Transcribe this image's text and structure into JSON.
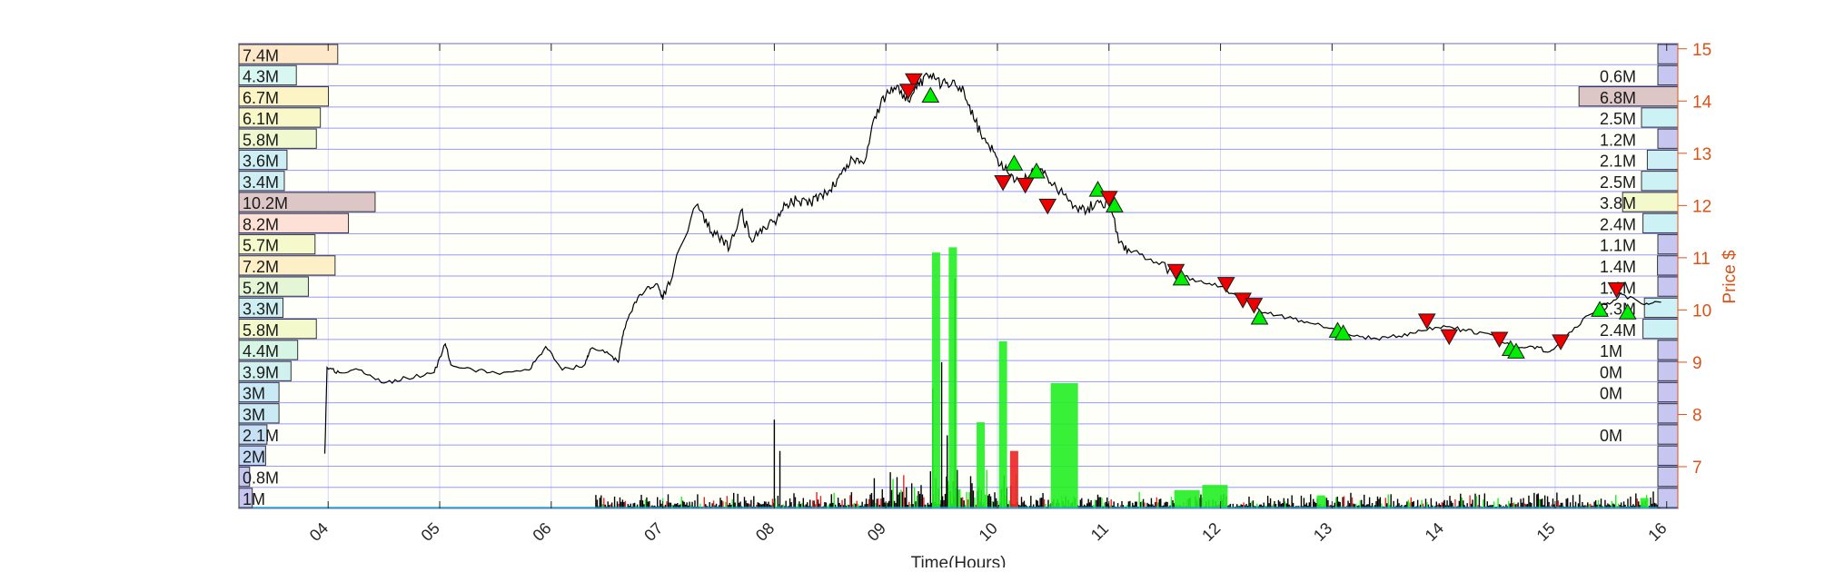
{
  "chart_data": {
    "type": "line",
    "xlabel": "Time(Hours)",
    "ylabel": "Price $",
    "xlim": [
      3.2,
      16.1
    ],
    "ylim": [
      6.2,
      15.1
    ],
    "x_ticks": [
      "04",
      "05",
      "06",
      "07",
      "08",
      "09",
      "10",
      "11",
      "12",
      "13",
      "14",
      "15",
      "16"
    ],
    "y_ticks": [
      "7",
      "8",
      "9",
      "10",
      "11",
      "12",
      "13",
      "14",
      "15"
    ],
    "grid": true,
    "colors": {
      "price_line": "#000000",
      "axis_right": "#d95319",
      "grid": "#8080ff",
      "buy": "#00ee00",
      "sell": "#ee0000",
      "volume_up": "#22ee22",
      "volume_down": "#ee2222",
      "volume_neutral": "#000000"
    },
    "left_volume_profile": [
      {
        "label": "7.4M",
        "value": 7.4,
        "color": "#fde9c9"
      },
      {
        "label": "4.3M",
        "value": 4.3,
        "color": "#d9f7f1"
      },
      {
        "label": "6.7M",
        "value": 6.7,
        "color": "#fdf4c6"
      },
      {
        "label": "6.1M",
        "value": 6.1,
        "color": "#f8f8c8"
      },
      {
        "label": "5.8M",
        "value": 5.8,
        "color": "#f0f8d0"
      },
      {
        "label": "3.6M",
        "value": 3.6,
        "color": "#cdeff3"
      },
      {
        "label": "3.4M",
        "value": 3.4,
        "color": "#cdeff3"
      },
      {
        "label": "10.2M",
        "value": 10.2,
        "color": "#dcc6c6"
      },
      {
        "label": "8.2M",
        "value": 8.2,
        "color": "#fde0d6"
      },
      {
        "label": "5.7M",
        "value": 5.7,
        "color": "#f6f9cc"
      },
      {
        "label": "7.2M",
        "value": 7.2,
        "color": "#fdf0c8"
      },
      {
        "label": "5.2M",
        "value": 5.2,
        "color": "#e4f6d6"
      },
      {
        "label": "3.3M",
        "value": 3.3,
        "color": "#cdeff3"
      },
      {
        "label": "5.8M",
        "value": 5.8,
        "color": "#f4f9cc"
      },
      {
        "label": "4.4M",
        "value": 4.4,
        "color": "#d7f5e4"
      },
      {
        "label": "3.9M",
        "value": 3.9,
        "color": "#d0f1ef"
      },
      {
        "label": "3M",
        "value": 3.0,
        "color": "#c9eaf5"
      },
      {
        "label": "3M",
        "value": 3.0,
        "color": "#c9eaf5"
      },
      {
        "label": "2.1M",
        "value": 2.1,
        "color": "#c6e1f5"
      },
      {
        "label": "2M",
        "value": 2.0,
        "color": "#c3d9f5"
      },
      {
        "label": "0.8M",
        "value": 0.8,
        "color": "#c6c6f0"
      },
      {
        "label": "1M",
        "value": 1.0,
        "color": "#c6c6f0"
      }
    ],
    "right_volume_profile": [
      {
        "label": "",
        "value": 0.0,
        "color": "#c6c6f0"
      },
      {
        "label": "0.6M",
        "value": 0.6,
        "color": "#c6c6f0"
      },
      {
        "label": "6.8M",
        "value": 6.8,
        "color": "#dcc6c6"
      },
      {
        "label": "2.5M",
        "value": 2.5,
        "color": "#cdf2f5"
      },
      {
        "label": "1.2M",
        "value": 1.2,
        "color": "#c6c6f0"
      },
      {
        "label": "2.1M",
        "value": 2.1,
        "color": "#cdeff5"
      },
      {
        "label": "2.5M",
        "value": 2.5,
        "color": "#cdf2f5"
      },
      {
        "label": "3.8M",
        "value": 3.8,
        "color": "#f4f9cc"
      },
      {
        "label": "2.4M",
        "value": 2.4,
        "color": "#cdf2f5"
      },
      {
        "label": "1.1M",
        "value": 1.1,
        "color": "#c6c6f0"
      },
      {
        "label": "1.4M",
        "value": 1.4,
        "color": "#c6c6f0"
      },
      {
        "label": "1.1M",
        "value": 1.1,
        "color": "#c6c6f0"
      },
      {
        "label": "2.3M",
        "value": 2.3,
        "color": "#cdf2f5"
      },
      {
        "label": "2.4M",
        "value": 2.4,
        "color": "#cdf2f5"
      },
      {
        "label": "1M",
        "value": 1.0,
        "color": "#c6c6f0"
      },
      {
        "label": "0M",
        "value": 0.1,
        "color": "#c6c6f0"
      },
      {
        "label": "0M",
        "value": 0.1,
        "color": "#c6c6f0"
      },
      {
        "label": "",
        "value": 0.0,
        "color": "#c6c6f0"
      },
      {
        "label": "0M",
        "value": 0.1,
        "color": "#c6c6f0"
      },
      {
        "label": "",
        "value": 0.0,
        "color": "#c6c6f0"
      },
      {
        "label": "",
        "value": 0.0,
        "color": "#c6c6f0"
      },
      {
        "label": "",
        "value": 0.0,
        "color": "#c6c6f0"
      }
    ],
    "price_series": [
      [
        3.97,
        7.25
      ],
      [
        3.99,
        8.9
      ],
      [
        4.1,
        8.8
      ],
      [
        4.3,
        8.85
      ],
      [
        4.5,
        8.6
      ],
      [
        4.7,
        8.7
      ],
      [
        4.95,
        8.8
      ],
      [
        5.05,
        9.35
      ],
      [
        5.1,
        8.95
      ],
      [
        5.3,
        8.85
      ],
      [
        5.5,
        8.8
      ],
      [
        5.8,
        8.85
      ],
      [
        5.95,
        9.3
      ],
      [
        6.1,
        8.85
      ],
      [
        6.3,
        8.95
      ],
      [
        6.35,
        9.25
      ],
      [
        6.5,
        9.2
      ],
      [
        6.6,
        9.0
      ],
      [
        6.65,
        9.6
      ],
      [
        6.75,
        10.15
      ],
      [
        6.85,
        10.4
      ],
      [
        6.95,
        10.5
      ],
      [
        7.0,
        10.2
      ],
      [
        7.1,
        10.8
      ],
      [
        7.3,
        12.0
      ],
      [
        7.4,
        11.6
      ],
      [
        7.5,
        11.4
      ],
      [
        7.6,
        11.2
      ],
      [
        7.7,
        11.9
      ],
      [
        7.8,
        11.3
      ],
      [
        7.9,
        11.6
      ],
      [
        8.0,
        11.7
      ],
      [
        8.1,
        12.0
      ],
      [
        8.2,
        12.1
      ],
      [
        8.3,
        12.0
      ],
      [
        8.4,
        12.2
      ],
      [
        8.5,
        12.3
      ],
      [
        8.6,
        12.6
      ],
      [
        8.7,
        12.9
      ],
      [
        8.8,
        12.8
      ],
      [
        8.9,
        13.7
      ],
      [
        9.0,
        14.1
      ],
      [
        9.1,
        14.3
      ],
      [
        9.2,
        14.0
      ],
      [
        9.3,
        14.3
      ],
      [
        9.4,
        14.5
      ],
      [
        9.5,
        14.3
      ],
      [
        9.6,
        14.4
      ],
      [
        9.7,
        14.2
      ],
      [
        9.8,
        13.6
      ],
      [
        9.9,
        13.2
      ],
      [
        10.0,
        12.9
      ],
      [
        10.1,
        12.6
      ],
      [
        10.2,
        12.5
      ],
      [
        10.3,
        12.6
      ],
      [
        10.4,
        12.7
      ],
      [
        10.5,
        12.4
      ],
      [
        10.6,
        12.2
      ],
      [
        10.7,
        12.0
      ],
      [
        10.8,
        11.9
      ],
      [
        10.9,
        12.1
      ],
      [
        11.0,
        12.0
      ],
      [
        11.1,
        11.3
      ],
      [
        11.2,
        11.1
      ],
      [
        11.4,
        10.9
      ],
      [
        11.6,
        10.7
      ],
      [
        11.8,
        10.55
      ],
      [
        12.0,
        10.45
      ],
      [
        12.2,
        10.2
      ],
      [
        12.4,
        9.95
      ],
      [
        12.6,
        9.85
      ],
      [
        12.8,
        9.75
      ],
      [
        13.0,
        9.65
      ],
      [
        13.2,
        9.5
      ],
      [
        13.4,
        9.45
      ],
      [
        13.6,
        9.5
      ],
      [
        13.8,
        9.6
      ],
      [
        14.0,
        9.7
      ],
      [
        14.2,
        9.6
      ],
      [
        14.4,
        9.55
      ],
      [
        14.6,
        9.3
      ],
      [
        14.8,
        9.3
      ],
      [
        14.95,
        9.2
      ],
      [
        15.1,
        9.5
      ],
      [
        15.3,
        9.9
      ],
      [
        15.45,
        10.1
      ],
      [
        15.6,
        10.3
      ],
      [
        15.8,
        10.1
      ],
      [
        15.95,
        10.15
      ]
    ],
    "buy_markers": [
      [
        9.4,
        14.1
      ],
      [
        10.15,
        12.8
      ],
      [
        10.35,
        12.65
      ],
      [
        10.9,
        12.3
      ],
      [
        11.05,
        12.0
      ],
      [
        11.65,
        10.6
      ],
      [
        12.35,
        9.85
      ],
      [
        13.05,
        9.6
      ],
      [
        13.1,
        9.55
      ],
      [
        14.6,
        9.25
      ],
      [
        14.65,
        9.2
      ],
      [
        15.4,
        10.0
      ],
      [
        15.65,
        9.95
      ]
    ],
    "sell_markers": [
      [
        9.25,
        14.4
      ],
      [
        9.2,
        14.2
      ],
      [
        10.05,
        12.45
      ],
      [
        10.25,
        12.4
      ],
      [
        10.45,
        12.0
      ],
      [
        11.0,
        12.15
      ],
      [
        11.6,
        10.75
      ],
      [
        12.05,
        10.5
      ],
      [
        12.2,
        10.2
      ],
      [
        12.3,
        10.1
      ],
      [
        13.85,
        9.8
      ],
      [
        14.05,
        9.5
      ],
      [
        14.5,
        9.45
      ],
      [
        15.05,
        9.4
      ],
      [
        15.55,
        10.4
      ]
    ],
    "volume_bars": [
      {
        "x": 9.45,
        "top": 11.1,
        "color": "green"
      },
      {
        "x": 9.6,
        "top": 11.2,
        "color": "green"
      },
      {
        "x": 9.85,
        "top": 7.85,
        "color": "green"
      },
      {
        "x": 10.05,
        "top": 9.4,
        "color": "green"
      },
      {
        "x": 10.15,
        "top": 7.3,
        "color": "red"
      },
      {
        "x": 10.6,
        "top": 8.6,
        "color": "green"
      },
      {
        "x": 11.7,
        "top": 6.55,
        "color": "green"
      },
      {
        "x": 11.95,
        "top": 6.65,
        "color": "green"
      },
      {
        "x": 12.9,
        "top": 6.45,
        "color": "green"
      },
      {
        "x": 15.8,
        "top": 6.4,
        "color": "green"
      }
    ]
  }
}
